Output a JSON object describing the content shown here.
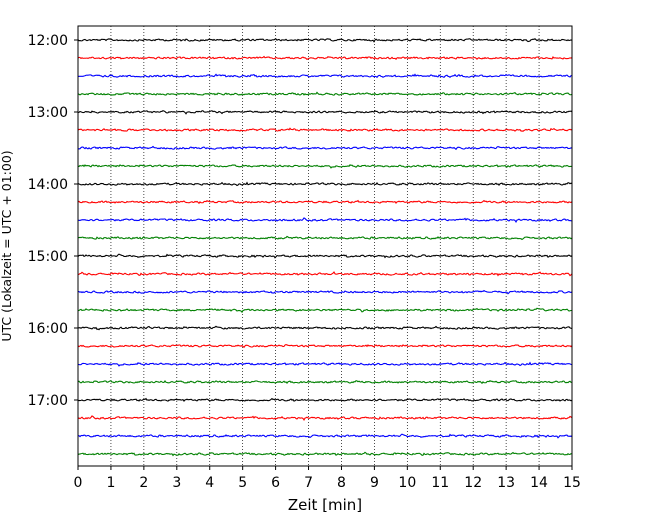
{
  "chart_data": {
    "type": "line",
    "title": "",
    "xlabel": "Zeit  [min]",
    "ylabel": "UTC (Lokalzeit = UTC + 01:00)",
    "xlim": [
      0,
      15
    ],
    "x_ticks": [
      "0",
      "1",
      "2",
      "3",
      "4",
      "5",
      "6",
      "7",
      "8",
      "9",
      "10",
      "11",
      "12",
      "13",
      "14",
      "15"
    ],
    "y_tick_labels": [
      "12:00",
      "13:00",
      "14:00",
      "15:00",
      "16:00",
      "17:00"
    ],
    "grid": "vertical dotted lines at each minute",
    "trace_interval_minutes": 15,
    "trace_colors": [
      "#000000",
      "#ff0000",
      "#0000ff",
      "#008000"
    ],
    "series": [
      {
        "start": "12:00",
        "color": "#000000"
      },
      {
        "start": "12:15",
        "color": "#ff0000"
      },
      {
        "start": "12:30",
        "color": "#0000ff"
      },
      {
        "start": "12:45",
        "color": "#008000"
      },
      {
        "start": "13:00",
        "color": "#000000"
      },
      {
        "start": "13:15",
        "color": "#ff0000"
      },
      {
        "start": "13:30",
        "color": "#0000ff"
      },
      {
        "start": "13:45",
        "color": "#008000"
      },
      {
        "start": "14:00",
        "color": "#000000"
      },
      {
        "start": "14:15",
        "color": "#ff0000"
      },
      {
        "start": "14:30",
        "color": "#0000ff"
      },
      {
        "start": "14:45",
        "color": "#008000"
      },
      {
        "start": "15:00",
        "color": "#000000"
      },
      {
        "start": "15:15",
        "color": "#ff0000"
      },
      {
        "start": "15:30",
        "color": "#0000ff"
      },
      {
        "start": "15:45",
        "color": "#008000"
      },
      {
        "start": "16:00",
        "color": "#000000"
      },
      {
        "start": "16:15",
        "color": "#ff0000"
      },
      {
        "start": "16:30",
        "color": "#0000ff"
      },
      {
        "start": "16:45",
        "color": "#008000"
      },
      {
        "start": "17:00",
        "color": "#000000"
      },
      {
        "start": "17:15",
        "color": "#ff0000"
      },
      {
        "start": "17:30",
        "color": "#0000ff"
      },
      {
        "start": "17:45",
        "color": "#008000"
      }
    ]
  }
}
